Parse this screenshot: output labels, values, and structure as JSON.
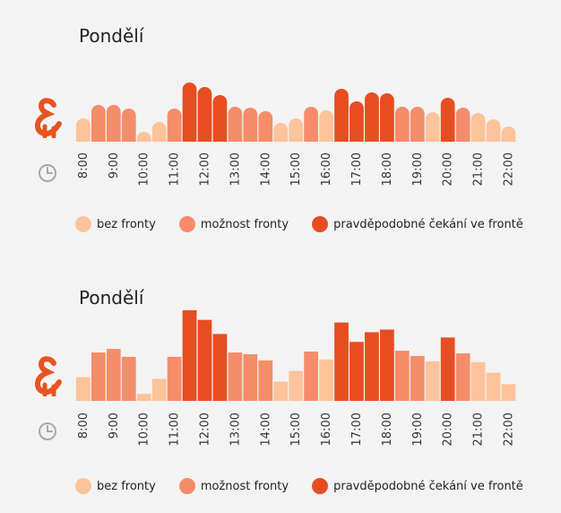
{
  "colors": {
    "no_queue": "#fdc39a",
    "possible_queue": "#f58d6a",
    "likely_wait": "#e64e22",
    "icon_orange": "#e8531f",
    "clock_gray": "#a8a8a8"
  },
  "icons": {
    "brand": "ampersand-icon",
    "time": "clock-icon"
  },
  "chart_data": [
    {
      "type": "bar",
      "title": "Pondělí",
      "bar_shape": "rounded",
      "categories": [
        "8:00",
        "8:30",
        "9:00",
        "9:30",
        "10:00",
        "10:30",
        "11:00",
        "11:30",
        "12:00",
        "12:30",
        "13:00",
        "13:30",
        "14:00",
        "14:30",
        "15:00",
        "15:30",
        "16:00",
        "16:30",
        "17:00",
        "17:30",
        "18:00",
        "18:30",
        "19:00",
        "19:30",
        "20:00",
        "20:30",
        "21:00",
        "21:30",
        "22:00",
        "22:30"
      ],
      "tick_labels": [
        "8:00",
        "9:00",
        "10:00",
        "11:00",
        "12:00",
        "13:00",
        "14:00",
        "15:00",
        "16:00",
        "17:00",
        "18:00",
        "19:00",
        "20:00",
        "21:00",
        "22:00"
      ],
      "values": [
        26,
        41,
        41,
        37,
        11,
        22,
        37,
        66,
        61,
        52,
        39,
        38,
        34,
        21,
        26,
        39,
        35,
        59,
        45,
        55,
        54,
        39,
        39,
        33,
        49,
        38,
        32,
        25,
        17,
        0
      ],
      "levels": [
        0,
        1,
        1,
        1,
        0,
        0,
        1,
        2,
        2,
        2,
        1,
        1,
        1,
        0,
        0,
        1,
        0,
        2,
        2,
        2,
        2,
        1,
        1,
        0,
        2,
        1,
        0,
        0,
        0,
        0
      ],
      "ylim": [
        0,
        70
      ],
      "legend": [
        "bez fronty",
        "možnost fronty",
        "pravděpodobné čekání ve frontě"
      ]
    },
    {
      "type": "bar",
      "title": "Pondělí",
      "bar_shape": "flat",
      "categories": [
        "8:00",
        "8:30",
        "9:00",
        "9:30",
        "10:00",
        "10:30",
        "11:00",
        "11:30",
        "12:00",
        "12:30",
        "13:00",
        "13:30",
        "14:00",
        "14:30",
        "15:00",
        "15:30",
        "16:00",
        "16:30",
        "17:00",
        "17:30",
        "18:00",
        "18:30",
        "19:00",
        "19:30",
        "20:00",
        "20:30",
        "21:00",
        "21:30",
        "22:00",
        "22:30"
      ],
      "tick_labels": [
        "8:00",
        "9:00",
        "10:00",
        "11:00",
        "12:00",
        "13:00",
        "14:00",
        "15:00",
        "16:00",
        "17:00",
        "18:00",
        "19:00",
        "20:00",
        "21:00",
        "22:00"
      ],
      "values": [
        27,
        55,
        59,
        50,
        8,
        25,
        50,
        103,
        92,
        76,
        55,
        53,
        46,
        22,
        34,
        56,
        47,
        89,
        67,
        78,
        81,
        57,
        51,
        45,
        72,
        54,
        44,
        32,
        19,
        0
      ],
      "levels": [
        0,
        1,
        1,
        1,
        0,
        0,
        1,
        2,
        2,
        2,
        1,
        1,
        1,
        0,
        0,
        1,
        0,
        2,
        2,
        2,
        2,
        1,
        1,
        0,
        2,
        1,
        0,
        0,
        0,
        0
      ],
      "ylim": [
        0,
        110
      ],
      "legend": [
        "bez fronty",
        "možnost fronty",
        "pravděpodobné čekání ve frontě"
      ]
    }
  ]
}
